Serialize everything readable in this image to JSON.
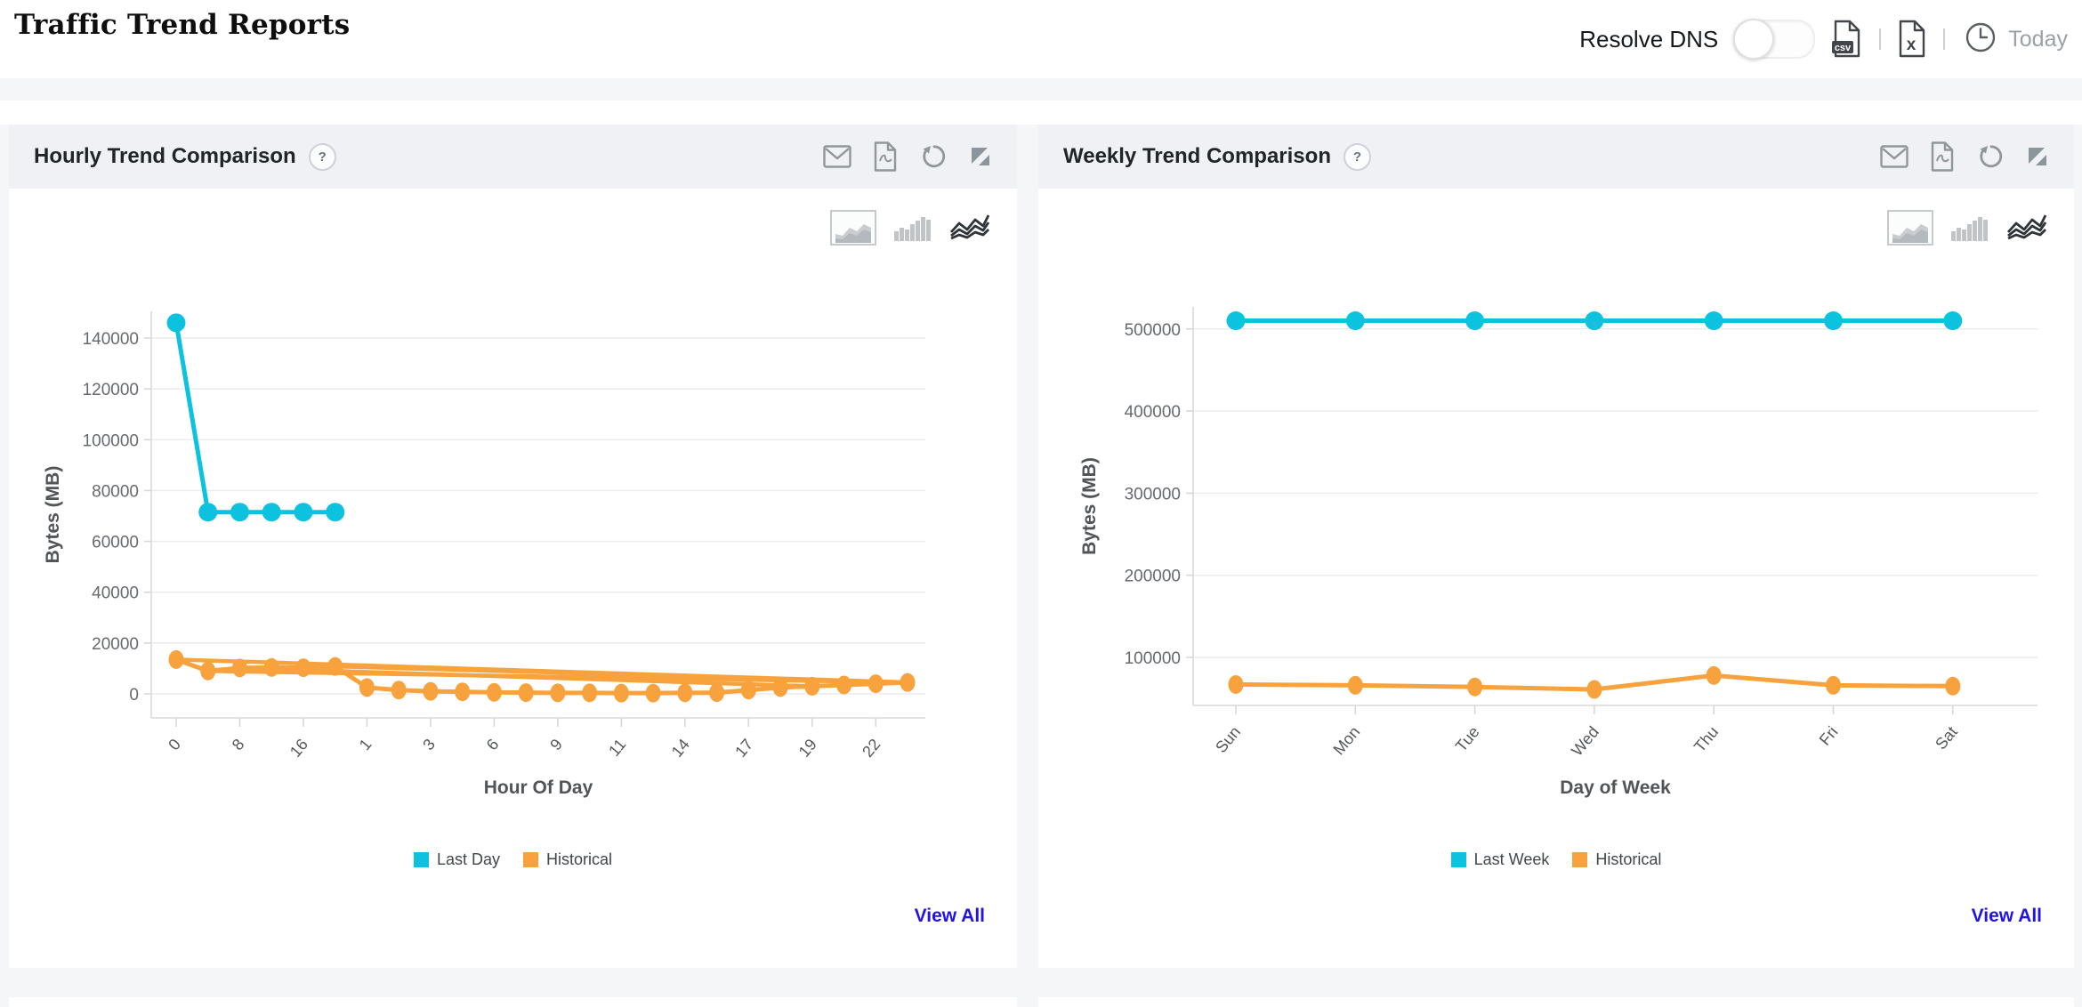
{
  "page": {
    "title": "Traffic Trend Reports"
  },
  "header": {
    "resolve_dns_label": "Resolve DNS",
    "toggle_state": "off",
    "csv_icon_text": "csv",
    "excel_icon_text": "x",
    "clock_icon_letter": "L",
    "period_label": "Today"
  },
  "colors": {
    "accent_cyan": "#0cc2de",
    "accent_orange": "#f7a23c",
    "link_blue": "#2113e8",
    "icon_gray": "#90979c",
    "panel_header_bg": "#eff1f4",
    "page_bg": "#f5f6f7"
  },
  "panels": [
    {
      "title": "Hourly Trend Comparison",
      "help_label": "?",
      "view_all_label": "View All",
      "legend": [
        {
          "label": "Last Day",
          "color": "#0cc2de"
        },
        {
          "label": "Historical",
          "color": "#f7a23c"
        }
      ]
    },
    {
      "title": "Weekly Trend Comparison",
      "help_label": "?",
      "view_all_label": "View All",
      "legend": [
        {
          "label": "Last Week",
          "color": "#0cc2de"
        },
        {
          "label": "Historical",
          "color": "#f7a23c"
        }
      ]
    }
  ],
  "chart_data": [
    {
      "type": "line",
      "title": "Hourly Trend Comparison",
      "xlabel": "Hour Of Day",
      "ylabel": "Bytes (MB)",
      "ylim": [
        -12000,
        148000
      ],
      "yticks": [
        0,
        20000,
        40000,
        60000,
        80000,
        100000,
        120000,
        140000
      ],
      "n_categories": 24,
      "x_tick_positions": [
        0,
        2,
        4,
        6,
        8,
        10,
        12,
        14,
        16,
        18,
        20,
        22
      ],
      "x_tick_labels": [
        "0",
        "8",
        "16",
        "1",
        "3",
        "6",
        "9",
        "11",
        "14",
        "17",
        "19",
        "22"
      ],
      "grid": "horizontal",
      "legend_position": "bottom",
      "series": [
        {
          "name": "Last Day",
          "color": "#0cc2de",
          "start": 0,
          "values": [
            146000,
            71500,
            71500,
            71500,
            71500,
            71500
          ]
        },
        {
          "name": "Historical",
          "color": "#f7a23c",
          "start": 0,
          "values": [
            13500,
            9000,
            10200,
            10400,
            10300,
            10800,
            2500,
            1500,
            1000,
            800,
            600,
            500,
            400,
            400,
            300,
            300,
            400,
            500,
            1500,
            2500,
            3000,
            3500,
            4000,
            4500
          ]
        }
      ],
      "overlap_color": "#f7a23c",
      "overlap_lines": [
        {
          "from": [
            0,
            13500
          ],
          "to": [
            23,
            4500
          ]
        },
        {
          "from": [
            1,
            9000
          ],
          "to": [
            23,
            4500
          ]
        },
        {
          "from": [
            2,
            10200
          ],
          "to": [
            20,
            3000
          ]
        },
        {
          "from": [
            5,
            10800
          ],
          "to": [
            23,
            4500
          ]
        }
      ]
    },
    {
      "type": "line",
      "title": "Weekly Trend Comparison",
      "xlabel": "Day of Week",
      "ylabel": "Bytes (MB)",
      "ylim": [
        40000,
        527000
      ],
      "yticks": [
        100000,
        200000,
        300000,
        400000,
        500000
      ],
      "categories": [
        "Sun",
        "Mon",
        "Tue",
        "Wed",
        "Thu",
        "Fri",
        "Sat"
      ],
      "grid": "horizontal",
      "legend_position": "bottom",
      "series": [
        {
          "name": "Last Week",
          "color": "#0cc2de",
          "values": [
            510000,
            510000,
            510000,
            510000,
            510000,
            510000,
            510000
          ]
        },
        {
          "name": "Historical",
          "color": "#f7a23c",
          "values": [
            67000,
            66000,
            64000,
            61000,
            78000,
            66000,
            65000
          ]
        }
      ]
    }
  ]
}
